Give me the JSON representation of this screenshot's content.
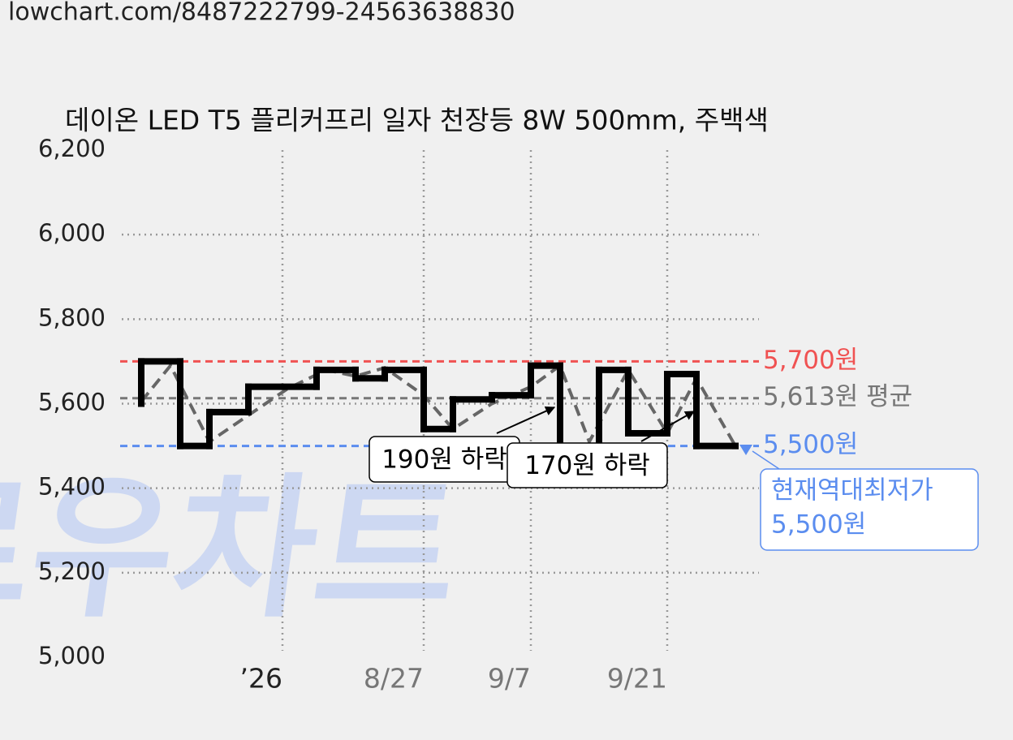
{
  "url": "lowchart.com/8487222799-24563638830",
  "watermark": "로우차트",
  "chart_data": {
    "type": "line",
    "title": "데이온 LED T5 플리커프리 일자 천장등 8W 500mm, 주백색",
    "ylim": [
      5000,
      6200
    ],
    "yticks": [
      {
        "value": 5000,
        "label": "5,000"
      },
      {
        "value": 5200,
        "label": "5,200"
      },
      {
        "value": 5400,
        "label": "5,400"
      },
      {
        "value": 5600,
        "label": "5,600"
      },
      {
        "value": 5800,
        "label": "5,800"
      },
      {
        "value": 6000,
        "label": "6,000"
      },
      {
        "value": 6200,
        "label": "6,200"
      }
    ],
    "xlim": [
      0,
      65
    ],
    "xticks": [
      {
        "value": 16.5,
        "label": "’26"
      },
      {
        "value": 31,
        "label": "8/27"
      },
      {
        "value": 42,
        "label": "9/7"
      },
      {
        "value": 56,
        "label": "9/21"
      }
    ],
    "xtick_colors": [
      "#222222",
      "#777777",
      "#777777",
      "#777777"
    ],
    "grid": true,
    "series": [
      {
        "color": "#000000",
        "step": "post",
        "x": [
          2,
          2,
          6,
          9,
          13,
          20,
          24,
          27,
          31,
          34,
          38,
          42,
          45,
          49,
          52,
          56,
          59,
          63
        ],
        "values": [
          5600,
          5700,
          5500,
          5580,
          5640,
          5680,
          5660,
          5680,
          5540,
          5610,
          5620,
          5690,
          5500,
          5680,
          5530,
          5670,
          5500,
          5500
        ]
      },
      {
        "color": "#666666",
        "dashed": true,
        "x": [
          2,
          5,
          9,
          17,
          21,
          24,
          27,
          31,
          34,
          38,
          42,
          45,
          48,
          52,
          56,
          59,
          63
        ],
        "values": [
          5605,
          5690,
          5510,
          5635,
          5680,
          5665,
          5685,
          5620,
          5540,
          5600,
          5640,
          5690,
          5510,
          5680,
          5530,
          5660,
          5500
        ]
      }
    ],
    "reference_lines": [
      {
        "value": 5700,
        "label": "5,700원",
        "color": "#f05252"
      },
      {
        "value": 5613,
        "label": "5,613원 평균",
        "color": "#777777"
      },
      {
        "value": 5500,
        "label": "5,500원",
        "color": "#5b8def"
      }
    ],
    "annotations": [
      "190원 하락",
      "170원 하락"
    ],
    "low_box": {
      "lines": [
        "현재역대최저가",
        "5,500원"
      ],
      "color": "#5b8def"
    }
  }
}
